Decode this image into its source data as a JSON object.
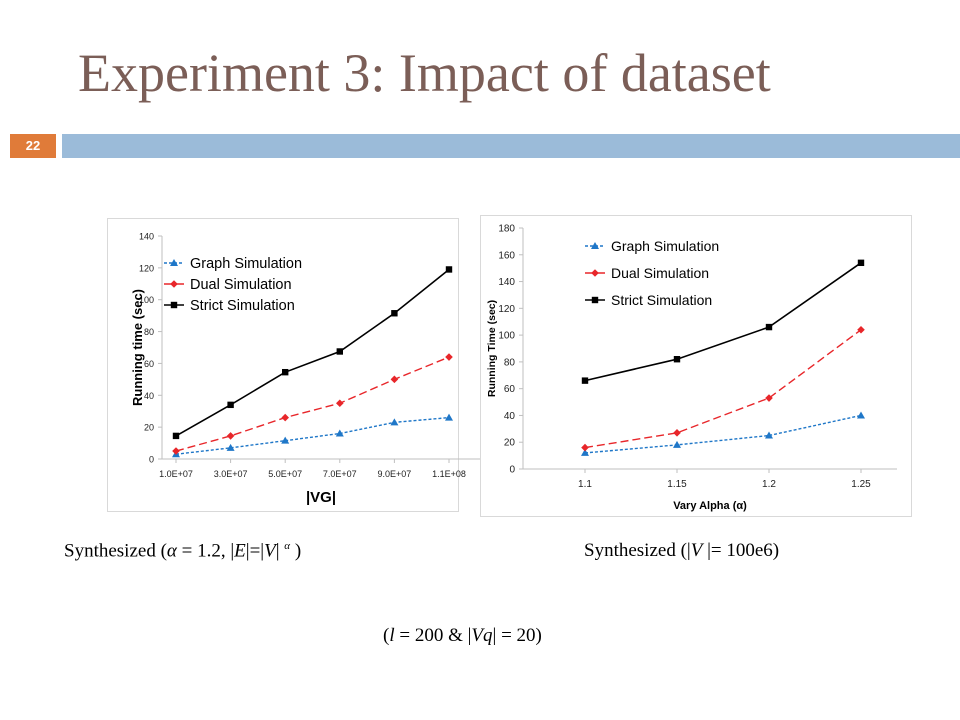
{
  "slide": {
    "title": "Experiment 3: Impact of dataset",
    "number": "22",
    "accent_color": "#e07b39",
    "band_color": "#9bbbd9"
  },
  "captions": {
    "left": {
      "prefix": "Synthesized (",
      "alpha": "α",
      "eq": " = 1.2, |",
      "E": "E",
      "mid": "|=|",
      "V": "V",
      "bar": "| ",
      "sup": "α",
      "close": " )"
    },
    "right": {
      "prefix": "Synthesized (|",
      "V": "V",
      "rest": " |= 100e6)"
    },
    "bottom": {
      "open": "(",
      "l": "l",
      "mid": " = 200 & |",
      "Vq": "Vq",
      "rest": "| = 20)"
    }
  },
  "chart_data": [
    {
      "type": "line",
      "xlabel": "|VG|",
      "ylabel": "Running time (sec)",
      "categories": [
        "1.0E+07",
        "3.0E+07",
        "5.0E+07",
        "7.0E+07",
        "9.0E+07",
        "1.1E+08"
      ],
      "ylim": [
        0,
        140
      ],
      "yticks": [
        0,
        20,
        40,
        60,
        80,
        100,
        120,
        140
      ],
      "grid": false,
      "legend": "top-left",
      "series": [
        {
          "name": "Graph Simulation",
          "color": "#1f77c8",
          "dash": "dotted",
          "marker": "triangle",
          "values": [
            3,
            7,
            11.5,
            16,
            23,
            26
          ]
        },
        {
          "name": "Dual Simulation",
          "color": "#e8262a",
          "dash": "dashed",
          "marker": "diamond",
          "values": [
            5,
            14.5,
            26,
            35,
            50,
            64
          ]
        },
        {
          "name": "Strict Simulation",
          "color": "#000000",
          "dash": "solid",
          "marker": "square",
          "values": [
            14.5,
            34,
            54.5,
            67.5,
            91.5,
            119
          ]
        }
      ]
    },
    {
      "type": "line",
      "xlabel": "Vary Alpha (α)",
      "ylabel": "Running Time (sec)",
      "categories": [
        "1.1",
        "1.15",
        "1.2",
        "1.25"
      ],
      "ylim": [
        0,
        180
      ],
      "yticks": [
        0,
        20,
        40,
        60,
        80,
        100,
        120,
        140,
        160,
        180
      ],
      "grid": false,
      "legend": "top-left",
      "series": [
        {
          "name": "Graph Simulation",
          "color": "#1f77c8",
          "dash": "dotted",
          "marker": "triangle",
          "values": [
            12,
            18,
            25,
            40
          ]
        },
        {
          "name": "Dual Simulation",
          "color": "#e8262a",
          "dash": "dashed",
          "marker": "diamond",
          "values": [
            16,
            27,
            53,
            104
          ]
        },
        {
          "name": "Strict Simulation",
          "color": "#000000",
          "dash": "solid",
          "marker": "square",
          "values": [
            66,
            82,
            106,
            154
          ]
        }
      ]
    }
  ]
}
